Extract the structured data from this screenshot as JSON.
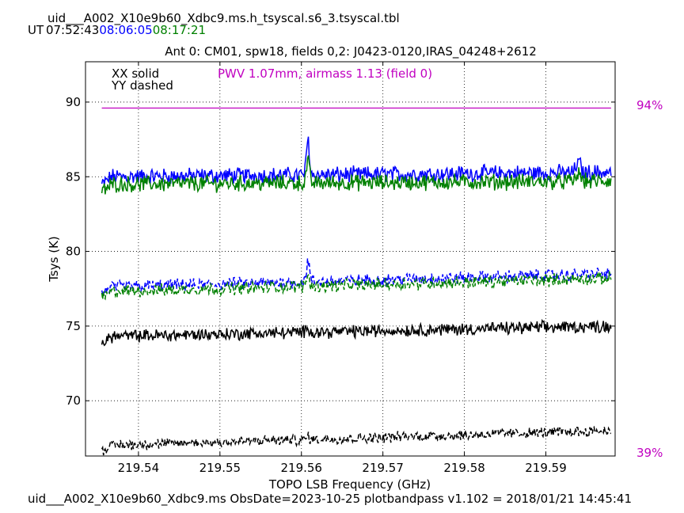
{
  "header": {
    "filename": "uid___A002_X10e9b60_Xdbc9.ms.h_tsyscal.s6_3.tsyscal.tbl",
    "ut_label": "UT",
    "times": [
      {
        "text": "07:52:43",
        "color": "#000000"
      },
      {
        "text": "08:06:05",
        "color": "#0000ff"
      },
      {
        "text": "08:17:21",
        "color": "#008000"
      }
    ]
  },
  "footer": "uid___A002_X10e9b60_Xdbc9.ms  ObsDate=2023-10-25   plotbandpass v1.102 = 2018/01/21 14:45:41",
  "chart_data": {
    "type": "line",
    "title": "Ant 0: CM01,  spw18,  fields 0,2: J0423-0120,IRAS_04248+2612",
    "xlabel": "TOPO LSB Frequency (GHz)",
    "ylabel": "Tsys (K)",
    "xlim": [
      219.5335,
      219.5985
    ],
    "ylim": [
      66.3,
      92.7
    ],
    "xticks": [
      219.54,
      219.55,
      219.56,
      219.57,
      219.58,
      219.59
    ],
    "xtick_labels": [
      "219.54",
      "219.55",
      "219.56",
      "219.57",
      "219.58",
      "219.59"
    ],
    "yticks": [
      70,
      75,
      80,
      85,
      90
    ],
    "ytick_labels": [
      "70",
      "75",
      "80",
      "85",
      "90"
    ],
    "grid": true,
    "legend": [
      "XX solid",
      "YY dashed"
    ],
    "annotation": "PWV 1.07mm, airmass 1.13 (field 0)",
    "annotation_color": "#c000c0",
    "right_axis_labels": {
      "top": "94%",
      "bottom": "39%"
    },
    "colors": {
      "pwv": "#c000c0",
      "black": "#000000",
      "blue": "#0000ff",
      "green": "#008000"
    },
    "x_range": [
      219.5355,
      219.598
    ],
    "series": [
      {
        "color": "#c000c0",
        "style": "solid",
        "level": 89.6,
        "noise": 0.0,
        "spike": 0.0,
        "end_rise": 0.0,
        "trend": 0.0
      },
      {
        "color": "#0000ff",
        "style": "solid",
        "level": 85.0,
        "noise": 0.45,
        "spike": 2.4,
        "end_rise": 0.7,
        "trend": 0.3
      },
      {
        "color": "#008000",
        "style": "solid",
        "level": 84.5,
        "noise": 0.45,
        "spike": 1.5,
        "end_rise": 0.5,
        "trend": 0.2
      },
      {
        "color": "#0000ff",
        "style": "dashed",
        "level": 77.6,
        "noise": 0.35,
        "spike": 1.4,
        "end_rise": 0.0,
        "trend": 0.9
      },
      {
        "color": "#008000",
        "style": "dashed",
        "level": 77.3,
        "noise": 0.35,
        "spike": 0.8,
        "end_rise": 0.0,
        "trend": 0.9
      },
      {
        "color": "#000000",
        "style": "solid",
        "level": 74.3,
        "noise": 0.35,
        "spike": 0.4,
        "end_rise": 0.0,
        "trend": 0.7
      },
      {
        "color": "#000000",
        "style": "dashed",
        "level": 67.0,
        "noise": 0.3,
        "spike": 0.2,
        "end_rise": 0.0,
        "trend": 1.0
      }
    ]
  }
}
